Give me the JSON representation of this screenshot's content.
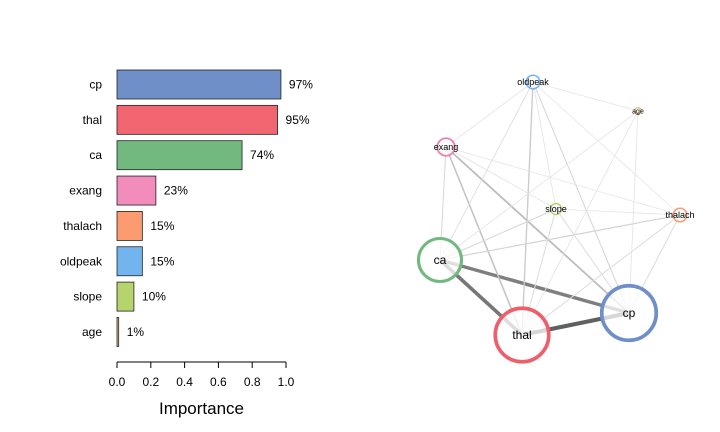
{
  "chart_data": [
    {
      "type": "bar",
      "orientation": "horizontal",
      "xlabel": "Importance",
      "xlim": [
        0,
        1
      ],
      "xticks": [
        "0.0",
        "0.2",
        "0.4",
        "0.6",
        "0.8",
        "1.0"
      ],
      "categories": [
        "cp",
        "thal",
        "ca",
        "exang",
        "thalach",
        "oldpeak",
        "slope",
        "age"
      ],
      "values": [
        0.97,
        0.95,
        0.74,
        0.23,
        0.15,
        0.15,
        0.1,
        0.01
      ],
      "value_labels": [
        "97%",
        "95%",
        "74%",
        "23%",
        "15%",
        "15%",
        "10%",
        "1%"
      ],
      "colors": [
        "#6f8fc9",
        "#f26672",
        "#72b97f",
        "#f28cba",
        "#fb9b6f",
        "#72b4ee",
        "#b5d46c",
        "#e8c08a"
      ]
    },
    {
      "type": "network",
      "nodes": [
        {
          "name": "cp",
          "importance": 0.97,
          "color": "#6f8fc9"
        },
        {
          "name": "thal",
          "importance": 0.95,
          "color": "#ee5f6b"
        },
        {
          "name": "ca",
          "importance": 0.74,
          "color": "#72b97f"
        },
        {
          "name": "exang",
          "importance": 0.23,
          "color": "#ee7fb0"
        },
        {
          "name": "thalach",
          "importance": 0.15,
          "color": "#fb9b6f"
        },
        {
          "name": "oldpeak",
          "importance": 0.15,
          "color": "#72b4ee"
        },
        {
          "name": "slope",
          "importance": 0.1,
          "color": "#b5d46c"
        },
        {
          "name": "age",
          "importance": 0.01,
          "color": "#e8c08a"
        }
      ],
      "edges": [
        {
          "source": "cp",
          "target": "thal",
          "weight": 0.9
        },
        {
          "source": "thal",
          "target": "ca",
          "weight": 0.75
        },
        {
          "source": "ca",
          "target": "cp",
          "weight": 0.7
        },
        {
          "source": "exang",
          "target": "cp",
          "weight": 0.3
        },
        {
          "source": "exang",
          "target": "thal",
          "weight": 0.25
        },
        {
          "source": "oldpeak",
          "target": "thal",
          "weight": 0.2
        },
        {
          "source": "thalach",
          "target": "ca",
          "weight": 0.15
        },
        {
          "source": "slope",
          "target": "ca",
          "weight": 0.12
        },
        {
          "source": "oldpeak",
          "target": "cp",
          "weight": 0.12
        },
        {
          "source": "exang",
          "target": "ca",
          "weight": 0.12
        },
        {
          "source": "slope",
          "target": "thal",
          "weight": 0.1
        },
        {
          "source": "slope",
          "target": "cp",
          "weight": 0.1
        },
        {
          "source": "thalach",
          "target": "cp",
          "weight": 0.1
        },
        {
          "source": "thalach",
          "target": "thal",
          "weight": 0.1
        },
        {
          "source": "oldpeak",
          "target": "ca",
          "weight": 0.08
        },
        {
          "source": "age",
          "target": "ca",
          "weight": 0.05
        },
        {
          "source": "age",
          "target": "cp",
          "weight": 0.05
        },
        {
          "source": "age",
          "target": "thal",
          "weight": 0.05
        },
        {
          "source": "age",
          "target": "oldpeak",
          "weight": 0.04
        },
        {
          "source": "exang",
          "target": "oldpeak",
          "weight": 0.05
        },
        {
          "source": "exang",
          "target": "slope",
          "weight": 0.05
        },
        {
          "source": "exang",
          "target": "thalach",
          "weight": 0.04
        },
        {
          "source": "oldpeak",
          "target": "slope",
          "weight": 0.05
        },
        {
          "source": "oldpeak",
          "target": "thalach",
          "weight": 0.04
        },
        {
          "source": "slope",
          "target": "thalach",
          "weight": 0.05
        }
      ]
    }
  ]
}
